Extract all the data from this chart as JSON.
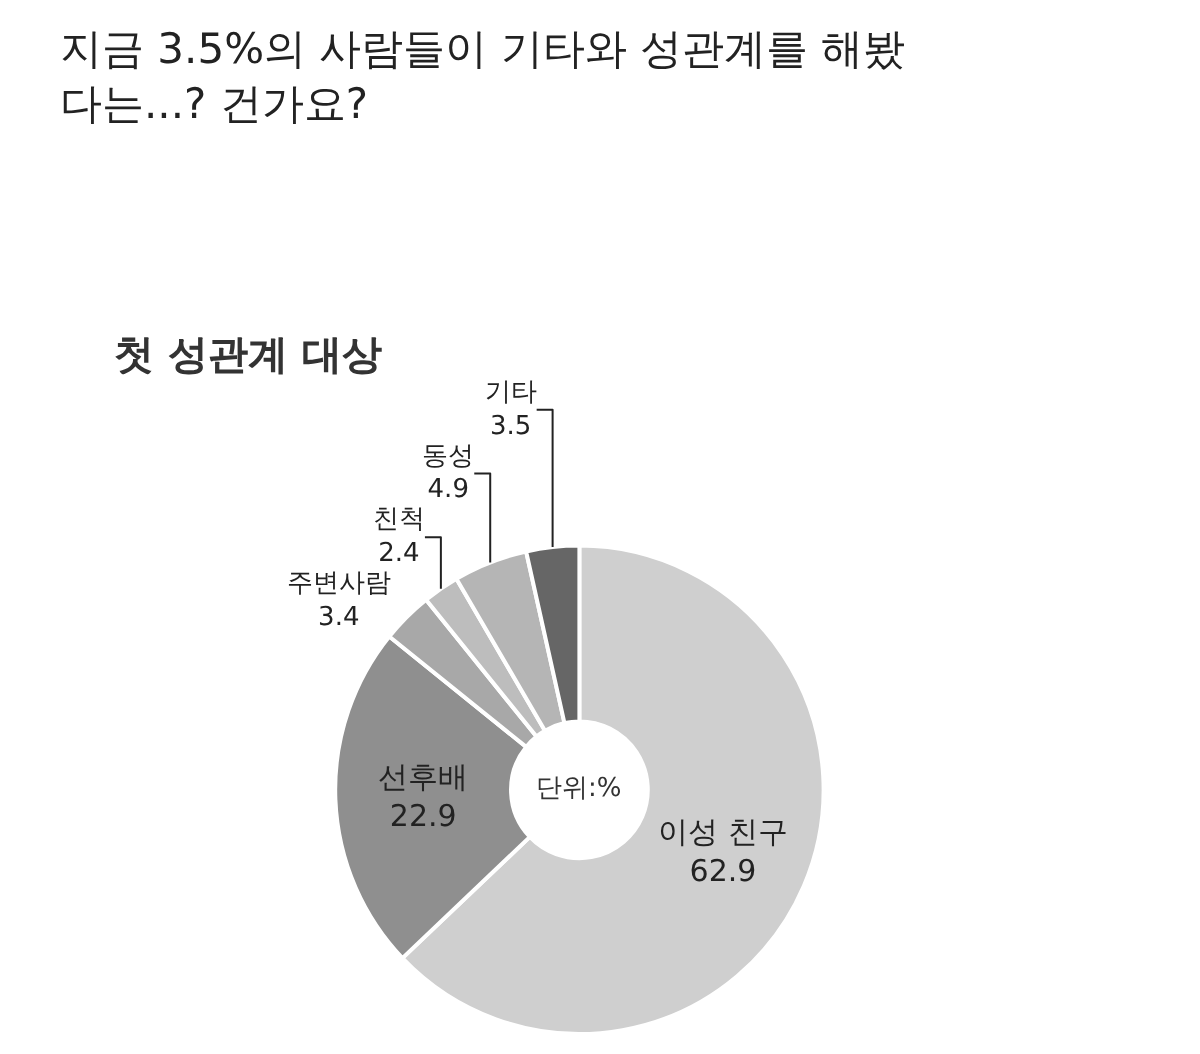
{
  "chart_data": {
    "type": "donut",
    "title": "지금 3.5%의 사람들이 기타와 성관계를 해봤\n다는...? 건가요?",
    "subtitle": "첫 성관계 대상",
    "categories": [
      "이성 친구",
      "선후배",
      "주변사람",
      "친척",
      "동성",
      "기타"
    ],
    "values": [
      62.9,
      22.9,
      3.4,
      2.4,
      4.9,
      3.5
    ],
    "colors": [
      "#cfcfcf",
      "#8f8f8f",
      "#a8a8a8",
      "#bdbdbd",
      "#b5b5b5",
      "#666666"
    ],
    "data_labels": true,
    "legend": false,
    "annotations": [
      "단위:%"
    ]
  }
}
